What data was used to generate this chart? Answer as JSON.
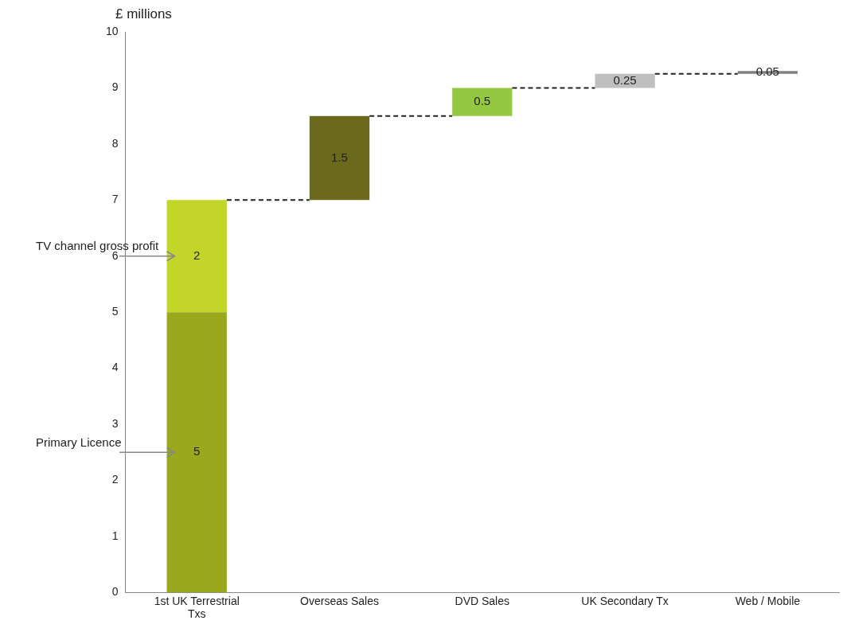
{
  "chart_data": {
    "type": "bar",
    "ylabel": "£ millions",
    "categories": [
      "1st UK Terrestrial Txs",
      "Overseas Sales",
      "DVD Sales",
      "UK Secondary Tx",
      "Web / Mobile"
    ],
    "series": [
      {
        "colors": [
          "#9aa81e",
          null,
          null,
          null,
          null
        ],
        "values": [
          5,
          null,
          null,
          null,
          null
        ],
        "base": [
          0,
          null,
          null,
          null,
          null
        ]
      },
      {
        "colors": [
          "#c4d52a",
          "#6b6a1c",
          "#93c840",
          "#bfbfbf",
          "#808080"
        ],
        "values": [
          2,
          1.5,
          0.5,
          0.25,
          0.05
        ],
        "base": [
          5,
          7,
          8.5,
          9,
          9.25
        ]
      }
    ],
    "ylim": [
      0,
      10
    ],
    "yticks": [
      0,
      1,
      2,
      3,
      4,
      5,
      6,
      7,
      8,
      9,
      10
    ],
    "grid": false,
    "legend": false,
    "data_labels": true,
    "ref_lines": [
      {
        "axis": "y",
        "value": 7,
        "color": "#222222",
        "line_style": "dashed"
      },
      {
        "axis": "y",
        "value": 8.5,
        "color": "#222222",
        "line_style": "dashed"
      },
      {
        "axis": "y",
        "value": 9,
        "color": "#222222",
        "line_style": "dashed"
      },
      {
        "axis": "y",
        "value": 9.25,
        "color": "#222222",
        "line_style": "dashed"
      }
    ],
    "annotations": [
      "TV channel gross profit",
      "Primary Licence"
    ]
  }
}
